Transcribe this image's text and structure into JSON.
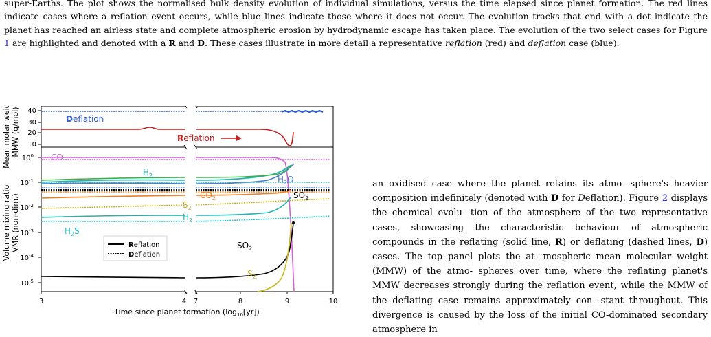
{
  "caption": {
    "lines": [
      "super-Earths. The plot shows the normalised bulk density evolution of individual simulations, versus the time elapsed since",
      "planet formation. The red lines indicate cases where a reflation event occurs, while blue lines indicate those where it does not",
      "occur. The evolution tracks that end with a dot indicate the planet has reached an airless state and complete atmospheric",
      "erosion by hydrodynamic escape has taken place. The evolution of the two select cases for Figure ",
      "are highlighted and denoted",
      "with a ",
      " and ",
      ". These cases illustrate in more detail a representative ",
      "reflation",
      " (red) and ",
      "deflation",
      " case (blue)."
    ],
    "fig_ref": "1",
    "bold_r": "R",
    "bold_d": "D"
  },
  "body_text": {
    "l1": "an oxidised case where the planet retains its atmo-",
    "l2": "sphere's heavier composition indefinitely (denoted with",
    "l3a": "D",
    "l3b": " for ",
    "l3c": "D",
    "l3d": "eflation). Figure ",
    "l3e": "2",
    "l3f": " displays the chemical evolu-",
    "l4": "tion of the atmosphere of the two representative cases,",
    "l5": "showcasing the characteristic behaviour of atmospheric",
    "l6a": "compounds in the reflating (solid line, ",
    "l6b": "R",
    "l6c": ") or deflating",
    "l7a": "(dashed lines, ",
    "l7b": "D",
    "l7c": ") cases.  The top panel plots the at-",
    "l8": "mospheric mean molecular weight (MMW) of the atmo-",
    "l9": "spheres over time, where the reflating planet's MMW",
    "l10": "decreases strongly during the reflation event, while the",
    "l11": "MMW of the deflating case remains approximately con-",
    "l12": "stant throughout. This divergence is caused by the loss",
    "l13": "of the initial CO-dominated secondary atmosphere in"
  },
  "figure": {
    "top_ylabel_1": "Mean molar weight",
    "top_ylabel_2": "MMW (g/mol)",
    "bot_ylabel_1": "Volume mixing ratio",
    "bot_ylabel_2": "VMR (non-dim.)",
    "xlabel_main": "Time since planet formation (log",
    "xlabel_sub": "10",
    "xlabel_end": "[yr])",
    "deflation_label_bold": "D",
    "deflation_label_rest": "eflation",
    "reflation_label_bold": "R",
    "reflation_label_rest": "eflation",
    "legend_solid_bold": "R",
    "legend_solid_rest": "eflation",
    "legend_dot_bold": "D",
    "legend_dot_rest": "eflation",
    "species": {
      "co": "CO",
      "h2_a": "H",
      "h2_a_sub": "2",
      "h2o": "H",
      "h2o_sub": "2",
      "h2o_end": "O",
      "so2_a": "SO",
      "so2_a_sub": "2",
      "co2": "CO",
      "co2_sub": "2",
      "s2_a": "S",
      "s2_a_sub": "2",
      "h2_b": "H",
      "h2_b_sub": "2",
      "h2s": "H",
      "h2s_sub": "2",
      "h2s_end": "S",
      "so2_b": "SO",
      "so2_b_sub": "2",
      "s2_b": "S",
      "s2_b_sub": "2"
    },
    "top_yticks": [
      "40",
      "30",
      "20",
      "10"
    ],
    "bot_yticks": [
      "10",
      "10",
      "10",
      "10",
      "10",
      "10"
    ],
    "bot_ytick_exps": [
      "0",
      "-1",
      "-2",
      "-3",
      "-4",
      "-5"
    ],
    "xticks_left": [
      "3",
      "4"
    ],
    "xticks_right": [
      "7",
      "8",
      "9",
      "10"
    ],
    "colors": {
      "reflation": "#c41e1e",
      "deflation": "#2a5bd0",
      "co": "#d45fd8",
      "h2": "#21b3b0",
      "h2o": "#4b7fd3",
      "so2": "#000000",
      "co2": "#f07d22",
      "s2": "#c8b51c",
      "h2s": "#26c7d4"
    }
  }
}
